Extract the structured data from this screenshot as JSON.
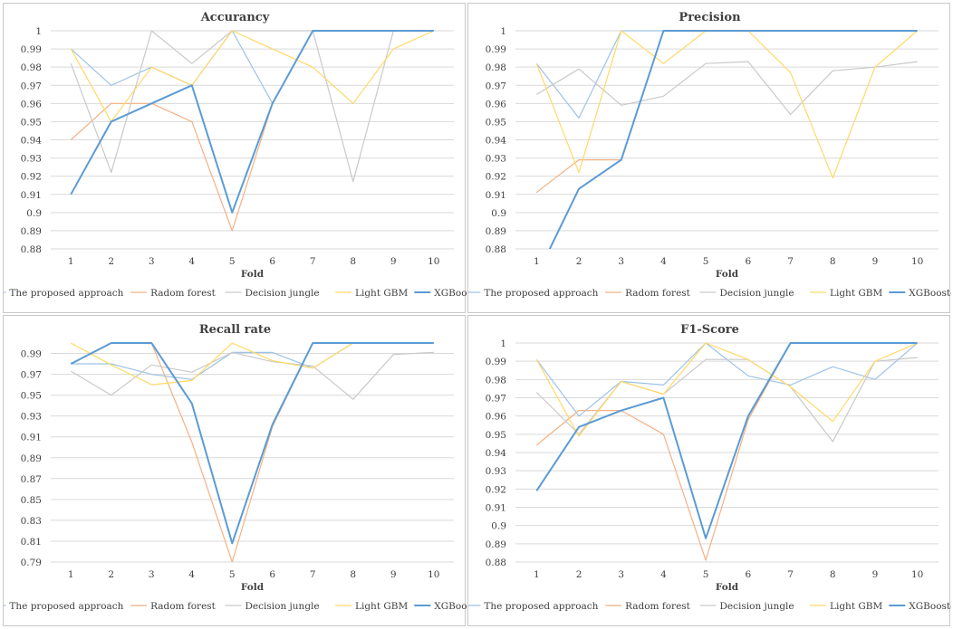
{
  "legend_labels": [
    "The proposed approach",
    "Radom forest",
    "Decision jungle",
    "Light GBM",
    "XGBoosted"
  ],
  "series_colors": [
    "#9dc3e6",
    "#f4b183",
    "#c9c9c9",
    "#ffd966",
    "#5b9bd5"
  ],
  "chart_data": [
    {
      "type": "line",
      "title": "Accurancy",
      "xlabel": "Fold",
      "ylabel": "",
      "x": [
        1,
        2,
        3,
        4,
        5,
        6,
        7,
        8,
        9,
        10
      ],
      "ylim": [
        0.88,
        1.0
      ],
      "yticks": [
        "0.88",
        "0.89",
        "0.9",
        "0.91",
        "0.92",
        "0.93",
        "0.94",
        "0.95",
        "0.96",
        "0.97",
        "0.98",
        "0.99",
        "1"
      ],
      "ytick_values": [
        0.88,
        0.89,
        0.9,
        0.91,
        0.92,
        0.93,
        0.94,
        0.95,
        0.96,
        0.97,
        0.98,
        0.99,
        1.0
      ],
      "grid": true,
      "legend": "bottom",
      "series": [
        {
          "name": "The proposed approach",
          "values": [
            0.99,
            0.97,
            0.98,
            0.97,
            1.0,
            0.96,
            1.0,
            1.0,
            1.0,
            1.0
          ]
        },
        {
          "name": "Radom forest",
          "values": [
            0.94,
            0.96,
            0.96,
            0.95,
            0.89,
            0.96,
            1.0,
            1.0,
            1.0,
            1.0
          ]
        },
        {
          "name": "Decision jungle",
          "values": [
            0.982,
            0.922,
            1.0,
            0.982,
            1.0,
            1.0,
            1.0,
            0.917,
            1.0,
            1.0
          ]
        },
        {
          "name": "Light GBM",
          "values": [
            0.99,
            0.95,
            0.98,
            0.97,
            1.0,
            0.99,
            0.98,
            0.96,
            0.99,
            1.0
          ]
        },
        {
          "name": "XGBoosted",
          "values": [
            0.91,
            0.95,
            0.96,
            0.97,
            0.9,
            0.96,
            1.0,
            1.0,
            1.0,
            1.0
          ]
        }
      ]
    },
    {
      "type": "line",
      "title": "Precision",
      "xlabel": "Fold",
      "ylabel": "",
      "x": [
        1,
        2,
        3,
        4,
        5,
        6,
        7,
        8,
        9,
        10
      ],
      "ylim": [
        0.88,
        1.0
      ],
      "yticks": [
        "0.88",
        "0.89",
        "0.9",
        "0.91",
        "0.92",
        "0.93",
        "0.94",
        "0.95",
        "0.96",
        "0.97",
        "0.98",
        "0.99",
        "1"
      ],
      "ytick_values": [
        0.88,
        0.89,
        0.9,
        0.91,
        0.92,
        0.93,
        0.94,
        0.95,
        0.96,
        0.97,
        0.98,
        0.99,
        1.0
      ],
      "grid": true,
      "legend": "bottom",
      "series": [
        {
          "name": "The proposed approach",
          "values": [
            0.982,
            0.952,
            1.0,
            1.0,
            1.0,
            1.0,
            1.0,
            1.0,
            1.0,
            1.0
          ]
        },
        {
          "name": "Radom forest",
          "values": [
            0.911,
            0.929,
            0.929,
            1.0,
            1.0,
            1.0,
            1.0,
            1.0,
            1.0,
            1.0
          ]
        },
        {
          "name": "Decision jungle",
          "values": [
            0.965,
            0.979,
            0.959,
            0.964,
            0.982,
            0.983,
            0.954,
            0.978,
            0.98,
            0.983
          ]
        },
        {
          "name": "Light GBM",
          "values": [
            0.982,
            0.922,
            1.0,
            0.982,
            1.0,
            1.0,
            0.977,
            0.919,
            0.98,
            1.0
          ]
        },
        {
          "name": "XGBoosted",
          "values": [
            0.865,
            0.913,
            0.929,
            1.0,
            1.0,
            1.0,
            1.0,
            1.0,
            1.0,
            1.0
          ]
        }
      ]
    },
    {
      "type": "line",
      "title": "Recall rate",
      "xlabel": "Fold",
      "ylabel": "",
      "x": [
        1,
        2,
        3,
        4,
        5,
        6,
        7,
        8,
        9,
        10
      ],
      "ylim": [
        0.79,
        1.0
      ],
      "yticks": [
        "0.79",
        "0.81",
        "0.83",
        "0.85",
        "0.87",
        "0.89",
        "0.91",
        "0.93",
        "0.95",
        "0.97",
        "0.99"
      ],
      "ytick_values": [
        0.79,
        0.81,
        0.83,
        0.85,
        0.87,
        0.89,
        0.91,
        0.93,
        0.95,
        0.97,
        0.99
      ],
      "grid": true,
      "legend": "bottom",
      "series": [
        {
          "name": "The proposed approach",
          "values": [
            0.98,
            0.98,
            0.97,
            0.965,
            0.991,
            0.991,
            0.976,
            1.0,
            1.0,
            1.0
          ]
        },
        {
          "name": "Radom forest",
          "values": [
            0.98,
            1.0,
            1.0,
            0.905,
            0.79,
            0.92,
            1.0,
            1.0,
            1.0,
            1.0
          ]
        },
        {
          "name": "Decision jungle",
          "values": [
            0.973,
            0.95,
            0.979,
            0.972,
            0.991,
            0.982,
            0.978,
            0.946,
            0.989,
            0.991
          ]
        },
        {
          "name": "Light GBM",
          "values": [
            1.0,
            0.979,
            0.96,
            0.964,
            1.0,
            0.983,
            0.976,
            1.0,
            1.0,
            1.0
          ]
        },
        {
          "name": "XGBoosted",
          "values": [
            0.98,
            1.0,
            1.0,
            0.942,
            0.808,
            0.922,
            1.0,
            1.0,
            1.0,
            1.0
          ]
        }
      ]
    },
    {
      "type": "line",
      "title": "F1-Score",
      "xlabel": "Fold",
      "ylabel": "",
      "x": [
        1,
        2,
        3,
        4,
        5,
        6,
        7,
        8,
        9,
        10
      ],
      "ylim": [
        0.88,
        1.0
      ],
      "yticks": [
        "0.88",
        "0.89",
        "0.9",
        "0.91",
        "0.92",
        "0.93",
        "0.94",
        "0.95",
        "0.96",
        "0.97",
        "0.98",
        "0.99",
        "1"
      ],
      "ytick_values": [
        0.88,
        0.89,
        0.9,
        0.91,
        0.92,
        0.93,
        0.94,
        0.95,
        0.96,
        0.97,
        0.98,
        0.99,
        1.0
      ],
      "grid": true,
      "legend": "bottom",
      "series": [
        {
          "name": "The proposed approach",
          "values": [
            0.991,
            0.96,
            0.979,
            0.977,
            1.0,
            0.982,
            0.977,
            0.987,
            0.98,
            1.0
          ]
        },
        {
          "name": "Radom forest",
          "values": [
            0.944,
            0.963,
            0.963,
            0.95,
            0.881,
            0.958,
            1.0,
            1.0,
            1.0,
            1.0
          ]
        },
        {
          "name": "Decision jungle",
          "values": [
            0.973,
            0.95,
            0.979,
            0.972,
            0.991,
            0.991,
            0.976,
            0.946,
            0.99,
            0.992
          ]
        },
        {
          "name": "Light GBM",
          "values": [
            0.991,
            0.949,
            0.979,
            0.972,
            1.0,
            0.991,
            0.976,
            0.957,
            0.99,
            1.0
          ]
        },
        {
          "name": "XGBoosted",
          "values": [
            0.919,
            0.954,
            0.963,
            0.97,
            0.893,
            0.96,
            1.0,
            1.0,
            1.0,
            1.0
          ]
        }
      ]
    }
  ]
}
